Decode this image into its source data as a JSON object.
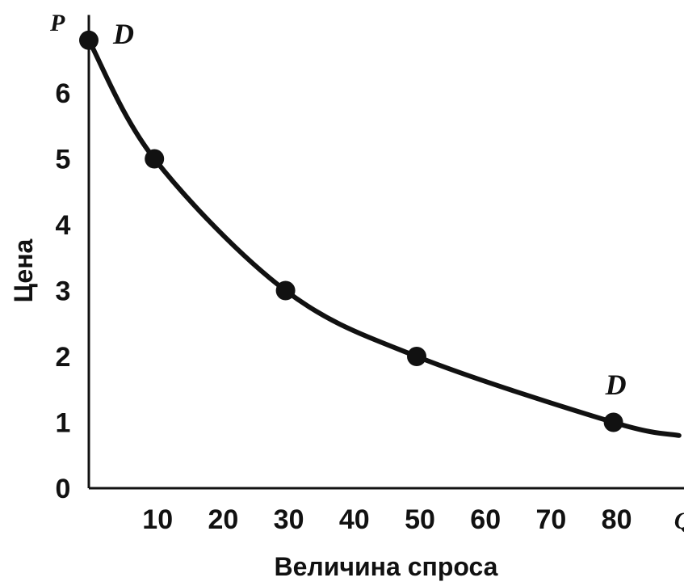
{
  "chart_data": {
    "type": "line",
    "title": "",
    "xlabel": "Величина спроса",
    "ylabel": "Цена",
    "x_axis_symbol": "Q",
    "y_axis_symbol": "P",
    "x_ticks": [
      10,
      20,
      30,
      40,
      50,
      60,
      70,
      80
    ],
    "y_ticks": [
      0,
      1,
      2,
      3,
      4,
      5,
      6
    ],
    "xlim": [
      0,
      90
    ],
    "ylim": [
      0,
      7
    ],
    "grid": false,
    "series": [
      {
        "name": "D",
        "marked_points": [
          {
            "x": 0,
            "y": 6.8
          },
          {
            "x": 10,
            "y": 5
          },
          {
            "x": 30,
            "y": 3
          },
          {
            "x": 50,
            "y": 2
          },
          {
            "x": 80,
            "y": 1
          }
        ],
        "curve_end": {
          "x": 90,
          "y": 0.8
        }
      }
    ],
    "curve_labels": [
      "D",
      "D"
    ]
  }
}
